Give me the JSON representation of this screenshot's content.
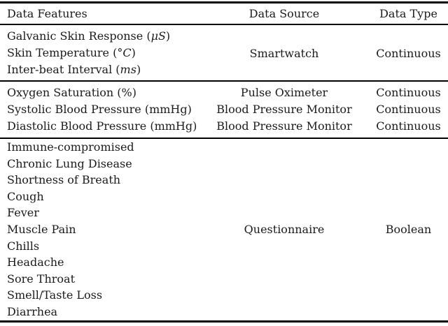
{
  "colors": {
    "background": "#ffffff",
    "text": "#1b1b1b",
    "rule": "#000000"
  },
  "table": {
    "columns": [
      "Data Features",
      "Data Source",
      "Data Type"
    ],
    "groups": [
      {
        "features": [
          {
            "pre": "Galvanic Skin Response (",
            "math": "μS",
            "post": ")"
          },
          {
            "pre": "Skin Temperature (°",
            "math": "C",
            "post": ")"
          },
          {
            "pre": "Inter-beat Interval (",
            "math": "ms",
            "post": ")"
          }
        ],
        "source": "Smartwatch",
        "type": "Continuous"
      },
      {
        "rows": [
          {
            "feature": "Oxygen Saturation (%)",
            "source": "Pulse Oximeter",
            "type": "Continuous"
          },
          {
            "feature": "Systolic Blood Pressure (mmHg)",
            "source": "Blood Pressure Monitor",
            "type": "Continuous"
          },
          {
            "feature": "Diastolic Blood Pressure (mmHg)",
            "source": "Blood Pressure Monitor",
            "type": "Continuous"
          }
        ]
      },
      {
        "features": [
          "Immune-compromised",
          "Chronic Lung Disease",
          "Shortness of Breath",
          "Cough",
          "Fever",
          "Muscle Pain",
          "Chills",
          "Headache",
          "Sore Throat",
          "Smell/Taste Loss",
          "Diarrhea"
        ],
        "source": "Questionnaire",
        "type": "Boolean"
      }
    ]
  }
}
